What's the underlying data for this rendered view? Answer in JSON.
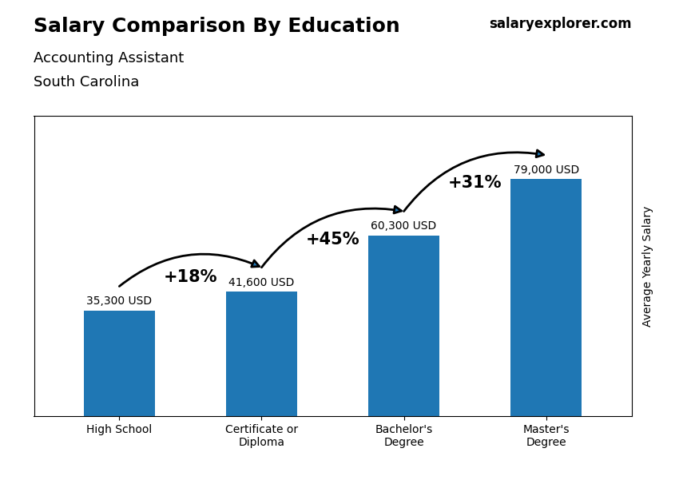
{
  "chart_data": {
    "type": "bar",
    "title": "Salary Comparison By Education",
    "subtitle": "Accounting Assistant",
    "ylabel": "Average Yearly Salary",
    "categories": [
      "High School",
      "Certificate or\nDiploma",
      "Bachelor's\nDegree",
      "Master's\nDegree"
    ],
    "values": [
      35300,
      41600,
      60300,
      79000
    ],
    "value_labels": [
      "35,300 USD",
      "41,600 USD",
      "60,300 USD",
      "79,000 USD"
    ],
    "data_labels": true,
    "annotations": [
      {
        "text": "South Carolina"
      },
      {
        "text": "salaryexplorer.com"
      },
      {
        "text": "+18%",
        "from": "High School",
        "to": "Certificate or\nDiploma"
      },
      {
        "text": "+45%",
        "from": "Certificate or\nDiploma",
        "to": "Bachelor's\nDegree"
      },
      {
        "text": "+31%",
        "from": "Bachelor's\nDegree",
        "to": "Master's\nDegree"
      }
    ],
    "ylim": [
      0,
      100000
    ],
    "tick_labels": "x",
    "grid": false
  }
}
